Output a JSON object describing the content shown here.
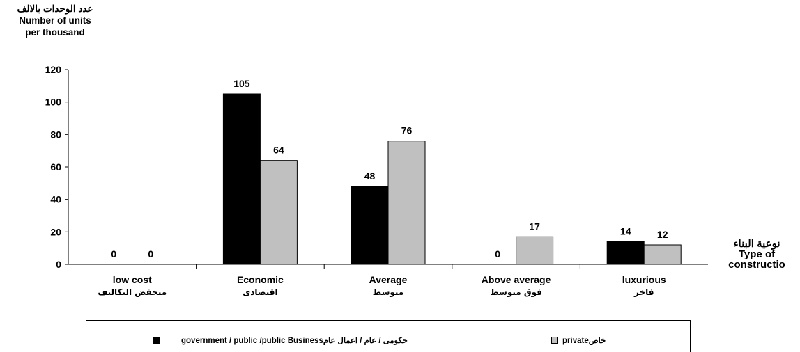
{
  "chart_data": {
    "type": "bar",
    "ylabel_lines": [
      "عدد الوحدات بالالف",
      "Number of units",
      "per thousand"
    ],
    "xlabel_lines": [
      "نوعية البناء",
      "Type of",
      "constructio"
    ],
    "ylim": [
      0,
      120
    ],
    "yticks": [
      0,
      20,
      40,
      60,
      80,
      100,
      120
    ],
    "categories": [
      {
        "en": "low cost",
        "ar": "منخفض التكاليف"
      },
      {
        "en": "Economic",
        "ar": "اقتصادى"
      },
      {
        "en": "Average",
        "ar": "متوسط"
      },
      {
        "en": "Above average",
        "ar": "فوق متوسط"
      },
      {
        "en": "luxurious",
        "ar": "فاخر"
      }
    ],
    "series": [
      {
        "name": "government / public /public Businessحكومى / عام / اعمال عام",
        "values": [
          0,
          105,
          48,
          0,
          14
        ],
        "color": "#000000"
      },
      {
        "name": "privateخاص",
        "values": [
          0,
          64,
          76,
          17,
          12
        ],
        "color": "#c0c0c0"
      }
    ],
    "legend_position": "bottom"
  }
}
